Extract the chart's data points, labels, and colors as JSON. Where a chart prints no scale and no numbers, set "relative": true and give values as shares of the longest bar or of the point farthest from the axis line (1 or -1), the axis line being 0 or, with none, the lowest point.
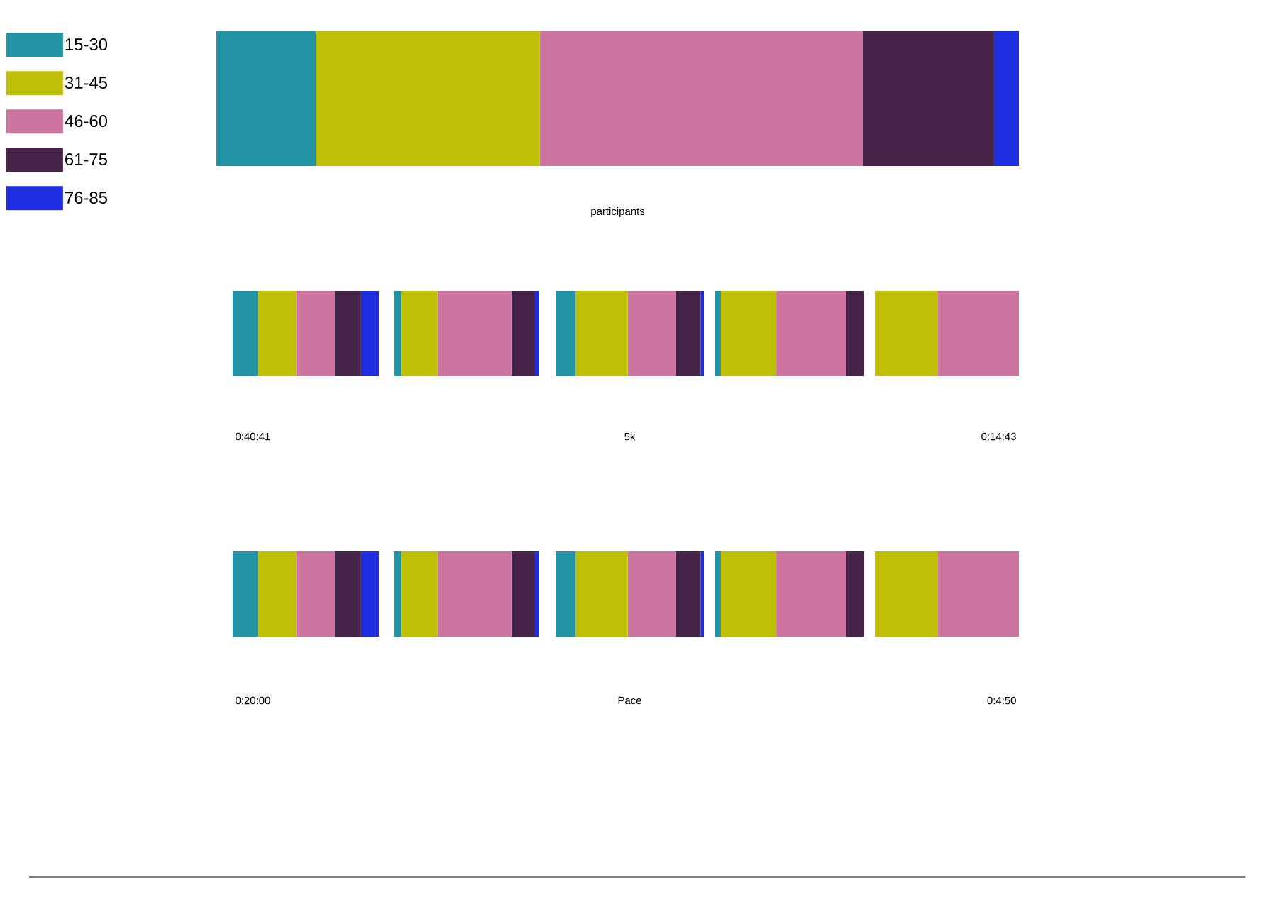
{
  "chart_data": [
    {
      "type": "bar",
      "orientation": "horizontal",
      "stacked": true,
      "relative": true,
      "categories": [
        null
      ],
      "xlabel": "participants",
      "legend": "left",
      "series": [
        {
          "name": "15-30",
          "color": "#2393a6",
          "values": [
            0.124
          ]
        },
        {
          "name": "31-45",
          "color": "#bfbf07",
          "values": [
            0.279
          ]
        },
        {
          "name": "46-60",
          "color": "#cd75a0",
          "values": [
            0.402
          ]
        },
        {
          "name": "61-75",
          "color": "#46244a",
          "values": [
            0.164
          ]
        },
        {
          "name": "76-85",
          "color": "#1f2de0",
          "values": [
            0.031
          ]
        }
      ]
    },
    {
      "type": "bar",
      "orientation": "horizontal",
      "stacked": true,
      "relative": true,
      "categories": [
        null
      ],
      "annotations": [
        "0:40:41"
      ],
      "series": [
        {
          "color": "#2393a6",
          "values": [
            0.173
          ]
        },
        {
          "color": "#bfbf07",
          "values": [
            0.263
          ]
        },
        {
          "color": "#cd75a0",
          "values": [
            0.263
          ]
        },
        {
          "color": "#46244a",
          "values": [
            0.179
          ]
        },
        {
          "color": "#1f2de0",
          "values": [
            0.122
          ]
        }
      ]
    },
    {
      "type": "bar",
      "orientation": "horizontal",
      "stacked": true,
      "relative": true,
      "categories": [
        null
      ],
      "series": [
        {
          "color": "#2393a6",
          "values": [
            0.05
          ]
        },
        {
          "color": "#bfbf07",
          "values": [
            0.251
          ]
        },
        {
          "color": "#cd75a0",
          "values": [
            0.508
          ]
        },
        {
          "color": "#46244a",
          "values": [
            0.162
          ]
        },
        {
          "color": "#1f2de0",
          "values": [
            0.029
          ]
        }
      ]
    },
    {
      "type": "bar",
      "orientation": "horizontal",
      "stacked": true,
      "relative": true,
      "categories": [
        null
      ],
      "xlabel": "5k",
      "series": [
        {
          "color": "#2393a6",
          "values": [
            0.133
          ]
        },
        {
          "color": "#bfbf07",
          "values": [
            0.354
          ]
        },
        {
          "color": "#cd75a0",
          "values": [
            0.326
          ]
        },
        {
          "color": "#46244a",
          "values": [
            0.166
          ]
        },
        {
          "color": "#1f2de0",
          "values": [
            0.021
          ]
        }
      ]
    },
    {
      "type": "bar",
      "orientation": "horizontal",
      "stacked": true,
      "relative": true,
      "categories": [
        null
      ],
      "series": [
        {
          "color": "#2393a6",
          "values": [
            0.038
          ]
        },
        {
          "color": "#bfbf07",
          "values": [
            0.374
          ]
        },
        {
          "color": "#cd75a0",
          "values": [
            0.473
          ]
        },
        {
          "color": "#46244a",
          "values": [
            0.115
          ]
        }
      ]
    },
    {
      "type": "bar",
      "orientation": "horizontal",
      "stacked": true,
      "relative": true,
      "categories": [
        null
      ],
      "annotations": [
        "0:14:43"
      ],
      "series": [
        {
          "color": "#bfbf07",
          "values": [
            0.438
          ]
        },
        {
          "color": "#cd75a0",
          "values": [
            0.562
          ]
        }
      ]
    },
    {
      "type": "bar",
      "orientation": "horizontal",
      "stacked": true,
      "relative": true,
      "categories": [
        null
      ],
      "annotations": [
        "0:20:00"
      ],
      "series": [
        {
          "color": "#2393a6",
          "values": [
            0.173
          ]
        },
        {
          "color": "#bfbf07",
          "values": [
            0.263
          ]
        },
        {
          "color": "#cd75a0",
          "values": [
            0.263
          ]
        },
        {
          "color": "#46244a",
          "values": [
            0.179
          ]
        },
        {
          "color": "#1f2de0",
          "values": [
            0.122
          ]
        }
      ]
    },
    {
      "type": "bar",
      "orientation": "horizontal",
      "stacked": true,
      "relative": true,
      "categories": [
        null
      ],
      "series": [
        {
          "color": "#2393a6",
          "values": [
            0.05
          ]
        },
        {
          "color": "#bfbf07",
          "values": [
            0.251
          ]
        },
        {
          "color": "#cd75a0",
          "values": [
            0.508
          ]
        },
        {
          "color": "#46244a",
          "values": [
            0.162
          ]
        },
        {
          "color": "#1f2de0",
          "values": [
            0.029
          ]
        }
      ]
    },
    {
      "type": "bar",
      "orientation": "horizontal",
      "stacked": true,
      "relative": true,
      "categories": [
        null
      ],
      "xlabel": "Pace",
      "series": [
        {
          "color": "#2393a6",
          "values": [
            0.133
          ]
        },
        {
          "color": "#bfbf07",
          "values": [
            0.354
          ]
        },
        {
          "color": "#cd75a0",
          "values": [
            0.326
          ]
        },
        {
          "color": "#46244a",
          "values": [
            0.166
          ]
        },
        {
          "color": "#1f2de0",
          "values": [
            0.021
          ]
        }
      ]
    },
    {
      "type": "bar",
      "orientation": "horizontal",
      "stacked": true,
      "relative": true,
      "categories": [
        null
      ],
      "series": [
        {
          "color": "#2393a6",
          "values": [
            0.038
          ]
        },
        {
          "color": "#bfbf07",
          "values": [
            0.374
          ]
        },
        {
          "color": "#cd75a0",
          "values": [
            0.473
          ]
        },
        {
          "color": "#46244a",
          "values": [
            0.115
          ]
        }
      ]
    },
    {
      "type": "bar",
      "orientation": "horizontal",
      "stacked": true,
      "relative": true,
      "categories": [
        null
      ],
      "annotations": [
        "0:4:50"
      ],
      "series": [
        {
          "color": "#bfbf07",
          "values": [
            0.438
          ]
        },
        {
          "color": "#cd75a0",
          "values": [
            0.562
          ]
        }
      ]
    }
  ]
}
